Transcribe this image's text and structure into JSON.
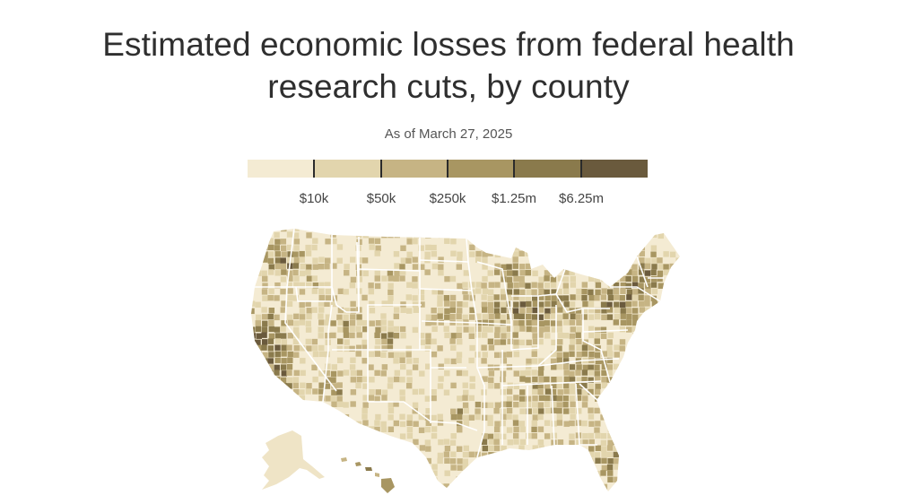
{
  "title": "Estimated economic losses from federal health research cuts, by county",
  "subtitle": "As of March 27, 2025",
  "legend": {
    "colors": [
      "#f4ebd3",
      "#e2d5ad",
      "#c6b484",
      "#a89662",
      "#8a7a4c",
      "#6a5a3d"
    ],
    "thresholds": [
      "$10k",
      "$50k",
      "$250k",
      "$1.25m",
      "$6.25m"
    ]
  }
}
